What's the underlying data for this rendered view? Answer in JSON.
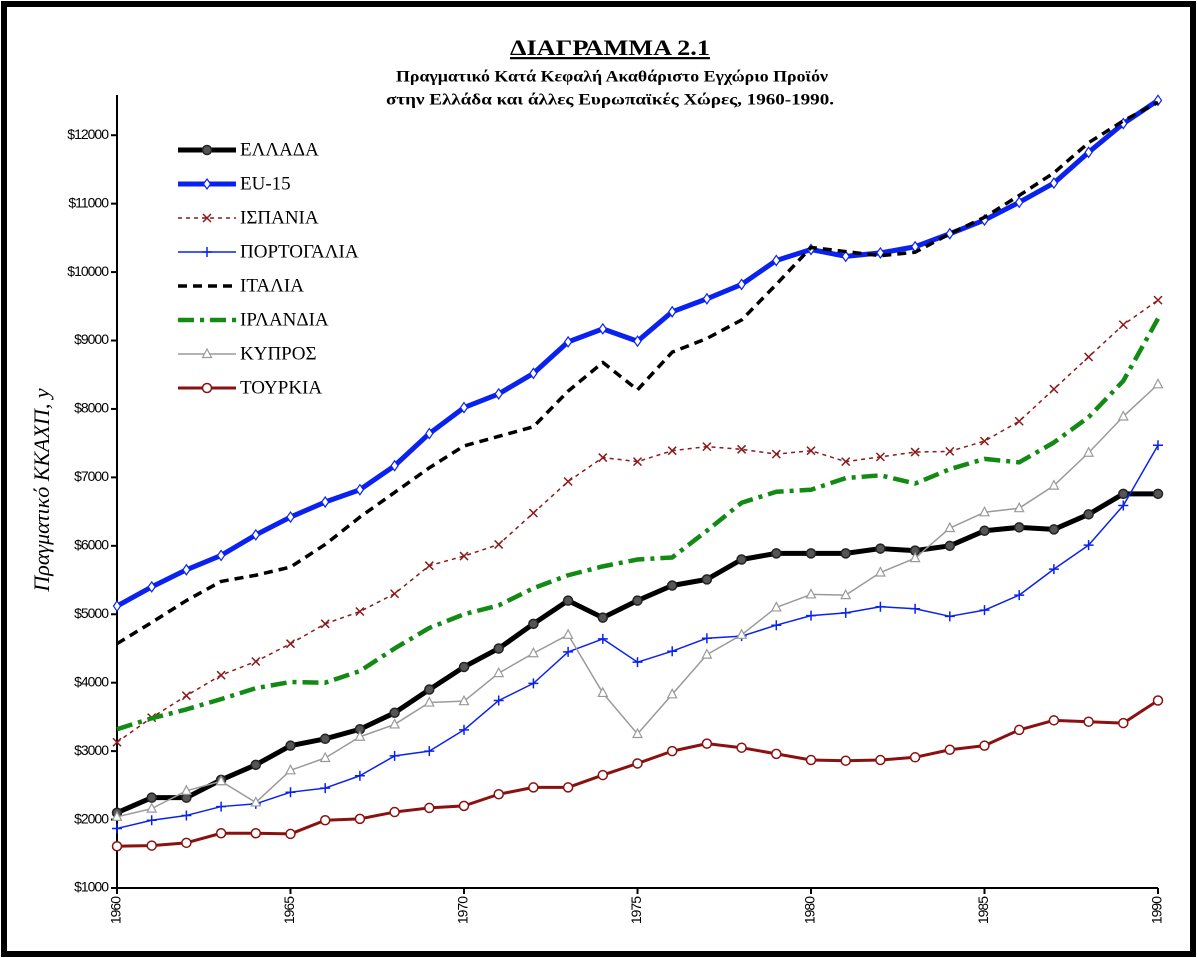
{
  "chart_data": {
    "type": "line",
    "title": "ΔΙΑΓΡΑΜΜΑ 2.1",
    "subtitle": [
      "Πραγματικό Κατά Κεφαλή Ακαθάριστο Εγχώριο Προϊόν",
      "στην Ελλάδα και άλλες Ευρωπαϊκές Χώρες, 1960-1990."
    ],
    "y_label": "Πραγματικό ΚΚΑΧΠ, y",
    "x": [
      1960,
      1961,
      1962,
      1963,
      1964,
      1965,
      1966,
      1967,
      1968,
      1969,
      1970,
      1971,
      1972,
      1973,
      1974,
      1975,
      1976,
      1977,
      1978,
      1979,
      1980,
      1981,
      1982,
      1983,
      1984,
      1985,
      1986,
      1987,
      1988,
      1989,
      1990
    ],
    "xlim": [
      1960,
      1990
    ],
    "xticks": [
      1960,
      1965,
      1970,
      1975,
      1980,
      1985,
      1990
    ],
    "ylim": [
      1000,
      12500
    ],
    "yticks": [
      {
        "value": 1000,
        "label": "$1000"
      },
      {
        "value": 2000,
        "label": "$2000"
      },
      {
        "value": 3000,
        "label": "$3000"
      },
      {
        "value": 4000,
        "label": "$4000"
      },
      {
        "value": 5000,
        "label": "$5000"
      },
      {
        "value": 6000,
        "label": "$6000"
      },
      {
        "value": 7000,
        "label": "$7000"
      },
      {
        "value": 8000,
        "label": "$8000"
      },
      {
        "value": 9000,
        "label": "$9000"
      },
      {
        "value": 10000,
        "label": "$10000"
      },
      {
        "value": 11000,
        "label": "$11000"
      },
      {
        "value": 12000,
        "label": "$12000"
      }
    ],
    "legend": "upper left",
    "grid": false,
    "series": [
      {
        "name": "ΕΛΛΑΔΑ",
        "color": "#000000",
        "linestyle": "solid",
        "marker": "circle",
        "values": [
          2100,
          2320,
          2320,
          2580,
          2800,
          3080,
          3180,
          3320,
          3560,
          3900,
          4230,
          4500,
          4860,
          5200,
          4950,
          5200,
          5420,
          5510,
          5800,
          5890,
          5890,
          5890,
          5960,
          5930,
          6000,
          6220,
          6270,
          6240,
          6460,
          6760,
          6760
        ]
      },
      {
        "name": "EU-15",
        "color": "#0a22f0",
        "linestyle": "solid",
        "marker": "diamond",
        "values": [
          5120,
          5400,
          5650,
          5860,
          6160,
          6420,
          6640,
          6820,
          7170,
          7640,
          8020,
          8220,
          8520,
          8980,
          9170,
          8990,
          9420,
          9610,
          9820,
          10170,
          10330,
          10230,
          10280,
          10370,
          10560,
          10760,
          11020,
          11300,
          11750,
          12170,
          12510
        ]
      },
      {
        "name": "ΙΣΠΑΝΙΑ",
        "color": "#8b1a1a",
        "linestyle": "dotted",
        "marker": "x",
        "values": [
          3130,
          3490,
          3810,
          4110,
          4310,
          4570,
          4860,
          5040,
          5300,
          5710,
          5850,
          6020,
          6480,
          6940,
          7290,
          7230,
          7390,
          7450,
          7410,
          7340,
          7390,
          7230,
          7300,
          7370,
          7380,
          7530,
          7820,
          8290,
          8760,
          9230,
          9590
        ]
      },
      {
        "name": "ΠΟΡΤΟΓΑΛΙΑ",
        "color": "#0a22f0",
        "linestyle": "solid",
        "marker": "plus",
        "values": [
          1870,
          1990,
          2060,
          2190,
          2230,
          2400,
          2460,
          2640,
          2930,
          3000,
          3310,
          3740,
          3990,
          4450,
          4640,
          4300,
          4460,
          4650,
          4680,
          4840,
          4980,
          5020,
          5110,
          5080,
          4970,
          5060,
          5280,
          5660,
          6010,
          6590,
          7470
        ]
      },
      {
        "name": "ΙΤΑΛΙΑ",
        "color": "#000000",
        "linestyle": "dashed",
        "marker": "none",
        "values": [
          4570,
          4880,
          5200,
          5480,
          5570,
          5690,
          6020,
          6420,
          6780,
          7140,
          7460,
          7600,
          7740,
          8260,
          8680,
          8280,
          8830,
          9030,
          9300,
          9820,
          10360,
          10300,
          10240,
          10290,
          10560,
          10800,
          11120,
          11450,
          11890,
          12210,
          12480
        ]
      },
      {
        "name": "ΙΡΛΑΝΔΙΑ",
        "color": "#138a13",
        "linestyle": "dashdot",
        "marker": "none",
        "values": [
          3320,
          3480,
          3610,
          3760,
          3920,
          4010,
          4000,
          4170,
          4500,
          4800,
          5000,
          5130,
          5380,
          5570,
          5700,
          5800,
          5830,
          6220,
          6630,
          6790,
          6820,
          6990,
          7030,
          6910,
          7120,
          7270,
          7220,
          7510,
          7880,
          8410,
          9320
        ]
      },
      {
        "name": "ΚΥΠΡΟΣ",
        "color": "#9a9a9a",
        "linestyle": "solid",
        "marker": "triangle",
        "values": [
          2040,
          2160,
          2420,
          2560,
          2250,
          2720,
          2900,
          3210,
          3390,
          3710,
          3730,
          4140,
          4430,
          4700,
          3850,
          3250,
          3830,
          4410,
          4700,
          5100,
          5290,
          5280,
          5610,
          5820,
          6260,
          6490,
          6550,
          6880,
          7360,
          7890,
          8360
        ]
      },
      {
        "name": "ΤΟΥΡΚΙΑ",
        "color": "#8b1010",
        "linestyle": "solid",
        "marker": "circle-open",
        "values": [
          1610,
          1620,
          1660,
          1800,
          1800,
          1790,
          1990,
          2010,
          2110,
          2170,
          2200,
          2370,
          2470,
          2470,
          2650,
          2820,
          3000,
          3110,
          3050,
          2960,
          2870,
          2860,
          2870,
          2910,
          3020,
          3080,
          3310,
          3450,
          3430,
          3410,
          3740
        ]
      }
    ]
  }
}
